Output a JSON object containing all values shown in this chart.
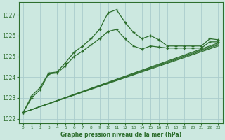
{
  "title": "Graphe pression niveau de la mer (hPa)",
  "background_color": "#cce8e0",
  "grid_color": "#aacccc",
  "line_color": "#2d6e2d",
  "xlim": [
    -0.5,
    23.5
  ],
  "ylim": [
    1021.8,
    1027.6
  ],
  "yticks": [
    1022,
    1023,
    1024,
    1025,
    1026,
    1027
  ],
  "xticks": [
    0,
    1,
    2,
    3,
    4,
    5,
    6,
    7,
    8,
    9,
    10,
    11,
    12,
    13,
    14,
    15,
    16,
    17,
    18,
    19,
    20,
    21,
    22,
    23
  ],
  "series_main": {
    "x": [
      0,
      1,
      2,
      3,
      4,
      5,
      6,
      7,
      8,
      9,
      10,
      11,
      12,
      13,
      14,
      15,
      16,
      17,
      18,
      19,
      20,
      21,
      22,
      23
    ],
    "y": [
      1022.3,
      1023.1,
      1023.5,
      1024.2,
      1024.25,
      1024.7,
      1025.2,
      1025.5,
      1025.85,
      1026.3,
      1027.1,
      1027.25,
      1026.65,
      1026.15,
      1025.85,
      1026.0,
      1025.8,
      1025.5,
      1025.5,
      1025.5,
      1025.5,
      1025.5,
      1025.85,
      1025.8
    ]
  },
  "series_second": {
    "x": [
      0,
      1,
      2,
      3,
      4,
      5,
      6,
      7,
      8,
      9,
      10,
      11,
      12,
      13,
      14,
      15,
      16,
      17,
      18,
      19,
      20,
      21,
      22,
      23
    ],
    "y": [
      1022.3,
      1023.0,
      1023.4,
      1024.15,
      1024.2,
      1024.55,
      1025.0,
      1025.25,
      1025.55,
      1025.85,
      1026.2,
      1026.3,
      1025.85,
      1025.5,
      1025.35,
      1025.5,
      1025.45,
      1025.4,
      1025.4,
      1025.4,
      1025.4,
      1025.4,
      1025.7,
      1025.7
    ]
  },
  "straight_lines": [
    {
      "x": [
        0,
        23
      ],
      "y": [
        1022.3,
        1025.5
      ]
    },
    {
      "x": [
        0,
        23
      ],
      "y": [
        1022.3,
        1025.55
      ]
    },
    {
      "x": [
        0,
        23
      ],
      "y": [
        1022.3,
        1025.6
      ]
    },
    {
      "x": [
        0,
        23
      ],
      "y": [
        1022.3,
        1025.65
      ]
    }
  ]
}
